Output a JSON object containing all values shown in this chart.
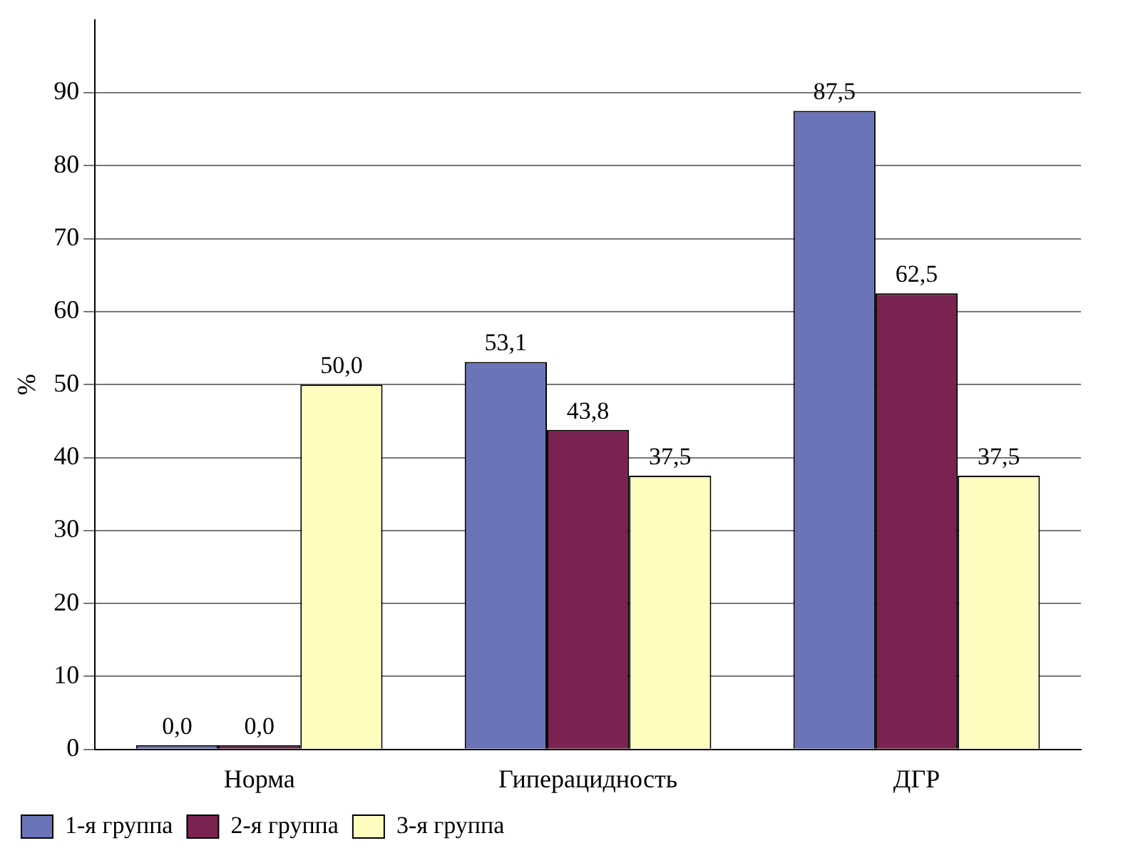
{
  "chart_data": {
    "type": "bar",
    "ylabel": "%",
    "categories": [
      "Норма",
      "Гиперацидность",
      "ДГР"
    ],
    "series": [
      {
        "name": "1-я группа",
        "color": "#6b74b8",
        "values": [
          0,
          53.1,
          87.5
        ],
        "value_labels": [
          "0,0",
          "53,1",
          "87,5"
        ]
      },
      {
        "name": "2-я группа",
        "color": "#7a2350",
        "values": [
          0,
          43.8,
          62.5
        ],
        "value_labels": [
          "0,0",
          "43,8",
          "62,5"
        ]
      },
      {
        "name": "3-я группа",
        "color": "#fffcc0",
        "values": [
          50,
          37.5,
          37.5
        ],
        "value_labels": [
          "50,0",
          "37,5",
          "37,5"
        ]
      }
    ],
    "ylim": [
      0,
      100
    ],
    "yticks": [
      0,
      10,
      20,
      30,
      40,
      50,
      60,
      70,
      80,
      90
    ],
    "grid": "y",
    "legend": "bottom left"
  }
}
